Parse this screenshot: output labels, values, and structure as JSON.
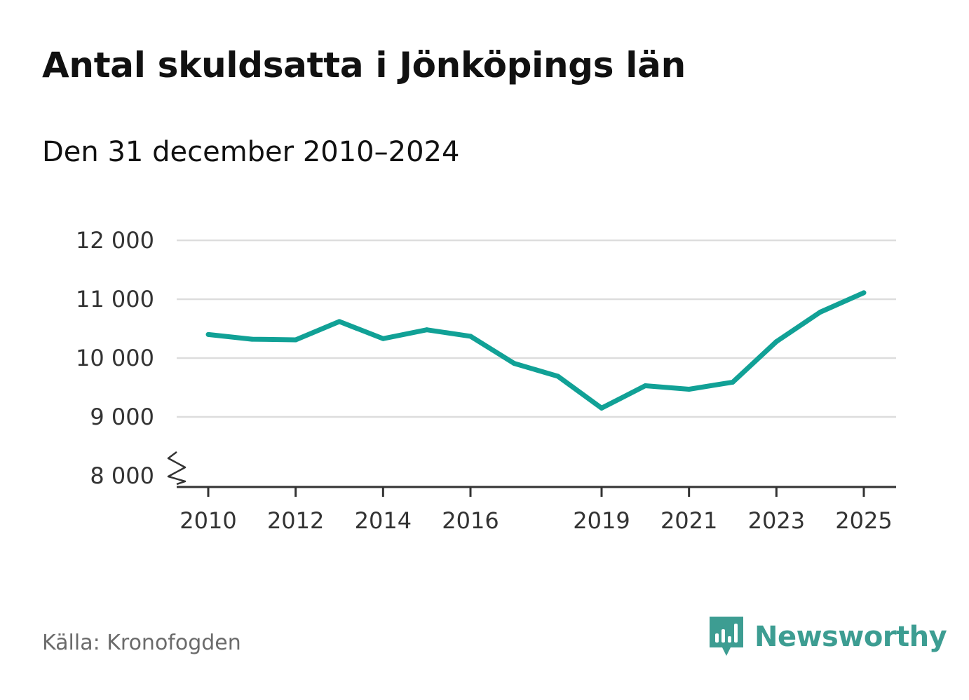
{
  "title": "Antal skuldsatta i Jönköpings län",
  "subtitle": "Den 31 december 2010–2024",
  "source": "Källa: Kronofogden",
  "brand": {
    "name": "Newsworthy",
    "icon": "bar-chart-speech-bubble-icon",
    "color": "#3d9d92"
  },
  "colors": {
    "line": "#11a196",
    "grid": "#dddddd",
    "axis": "#333333"
  },
  "chart_data": {
    "type": "line",
    "title": "Antal skuldsatta i Jönköpings län",
    "xlabel": "",
    "ylabel": "",
    "x": [
      2010,
      2011,
      2012,
      2013,
      2014,
      2015,
      2016,
      2017,
      2018,
      2019,
      2020,
      2021,
      2022,
      2023,
      2024,
      2025
    ],
    "series": [
      {
        "name": "Antal skuldsatta",
        "values": [
          10400,
          10320,
          10310,
          10620,
          10330,
          10480,
          10370,
          9910,
          9690,
          9150,
          9530,
          9470,
          9590,
          10280,
          10780,
          11110
        ]
      }
    ],
    "ylim": [
      8000,
      12000
    ],
    "axis_break": true,
    "y_ticks": [
      8000,
      9000,
      10000,
      11000,
      12000
    ],
    "y_tick_labels": [
      "8 000",
      "9 000",
      "10 000",
      "11 000",
      "12 000"
    ],
    "x_ticks": [
      2010,
      2012,
      2014,
      2016,
      2019,
      2021,
      2023,
      2025
    ],
    "x_tick_labels": [
      "2010",
      "2012",
      "2014",
      "2016",
      "2019",
      "2021",
      "2023",
      "2025"
    ],
    "grid": true
  }
}
